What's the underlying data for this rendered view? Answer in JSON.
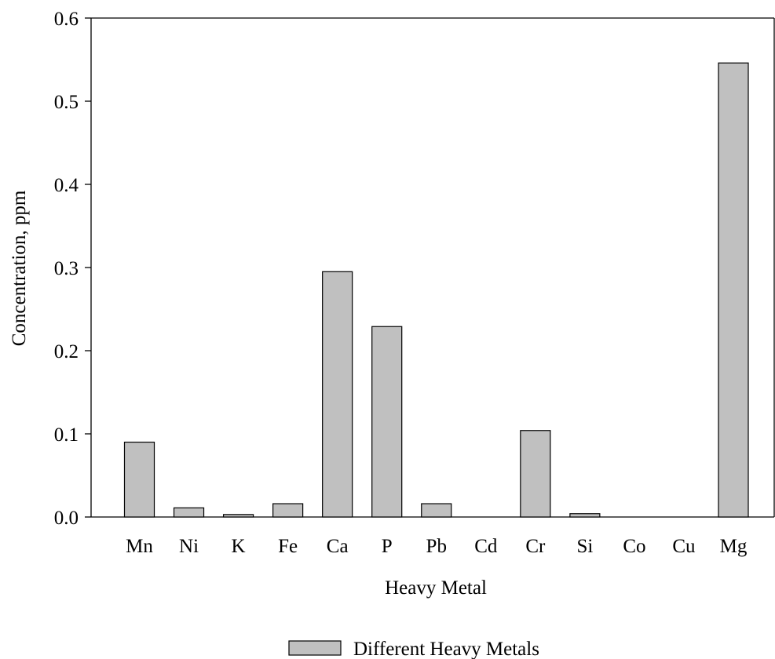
{
  "chart_data": {
    "type": "bar",
    "title": "",
    "xlabel": "Heavy Metal",
    "ylabel": "Concentration, ppm",
    "categories": [
      "Mn",
      "Ni",
      "K",
      "Fe",
      "Ca",
      "P",
      "Pb",
      "Cd",
      "Cr",
      "Si",
      "Co",
      "Cu",
      "Mg"
    ],
    "series": [
      {
        "name": "Different Heavy Metals",
        "values": [
          0.09,
          0.011,
          0.003,
          0.016,
          0.295,
          0.229,
          0.016,
          0.0,
          0.104,
          0.004,
          0.0,
          0.0,
          0.546
        ]
      }
    ],
    "ylim": [
      0,
      0.6
    ],
    "yticks": [
      "0.0",
      "0.1",
      "0.2",
      "0.3",
      "0.4",
      "0.5",
      "0.6"
    ],
    "grid": false,
    "legend_position": "bottom-center",
    "colors": {
      "bar_fill": "#c0c0c0",
      "bar_stroke": "#000000",
      "axis": "#000000"
    }
  }
}
